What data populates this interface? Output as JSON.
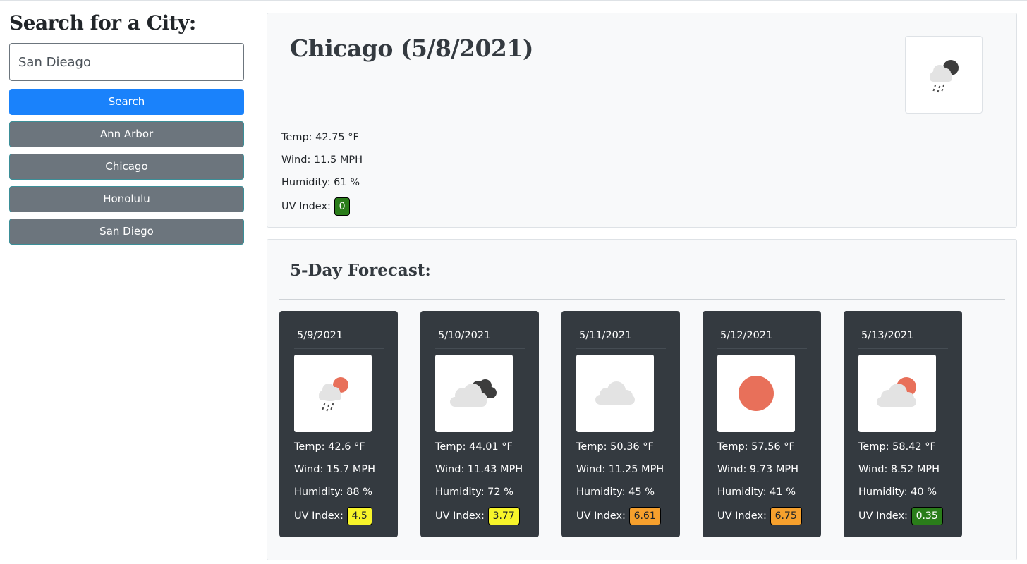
{
  "search": {
    "title": "Search for a City:",
    "input_value": "San Dieago",
    "button_label": "Search"
  },
  "history": [
    {
      "label": "Ann Arbor"
    },
    {
      "label": "Chicago"
    },
    {
      "label": "Honolulu"
    },
    {
      "label": "San Diego"
    }
  ],
  "current": {
    "title": "Chicago (5/8/2021)",
    "icon": "night-rain-icon",
    "temp": "Temp: 42.75 °F",
    "wind": "Wind: 11.5 MPH",
    "humidity": "Humidity: 61 %",
    "uv_label": "UV Index:",
    "uv_value": "0",
    "uv_level": "low"
  },
  "forecast": {
    "title": "5-Day Forecast:",
    "days": [
      {
        "date": "5/9/2021",
        "icon": "day-rain-icon",
        "temp": "Temp: 42.6 °F",
        "wind": "Wind: 15.7 MPH",
        "humidity": "Humidity: 88 %",
        "uv_label": "UV Index:",
        "uv_value": "4.5",
        "uv_level": "moderate"
      },
      {
        "date": "5/10/2021",
        "icon": "broken-clouds-icon",
        "temp": "Temp: 44.01 °F",
        "wind": "Wind: 11.43 MPH",
        "humidity": "Humidity: 72 %",
        "uv_label": "UV Index:",
        "uv_value": "3.77",
        "uv_level": "moderate"
      },
      {
        "date": "5/11/2021",
        "icon": "cloud-icon",
        "temp": "Temp: 50.36 °F",
        "wind": "Wind: 11.25 MPH",
        "humidity": "Humidity: 45 %",
        "uv_label": "UV Index:",
        "uv_value": "6.61",
        "uv_level": "high"
      },
      {
        "date": "5/12/2021",
        "icon": "clear-sun-icon",
        "temp": "Temp: 57.56 °F",
        "wind": "Wind: 9.73 MPH",
        "humidity": "Humidity: 41 %",
        "uv_label": "UV Index:",
        "uv_value": "6.75",
        "uv_level": "high"
      },
      {
        "date": "5/13/2021",
        "icon": "partly-cloudy-icon",
        "temp": "Temp: 58.42 °F",
        "wind": "Wind: 8.52 MPH",
        "humidity": "Humidity: 40 %",
        "uv_label": "UV Index:",
        "uv_value": "0.35",
        "uv_level": "low"
      }
    ]
  },
  "colors": {
    "search_button": "#1a82fb",
    "history_button": "#6c757d",
    "card_bg": "#343a40",
    "uv_low": "#2a7d1a",
    "uv_moderate": "#f7f42a",
    "uv_high": "#f6a02d",
    "sun": "#e8705a"
  }
}
